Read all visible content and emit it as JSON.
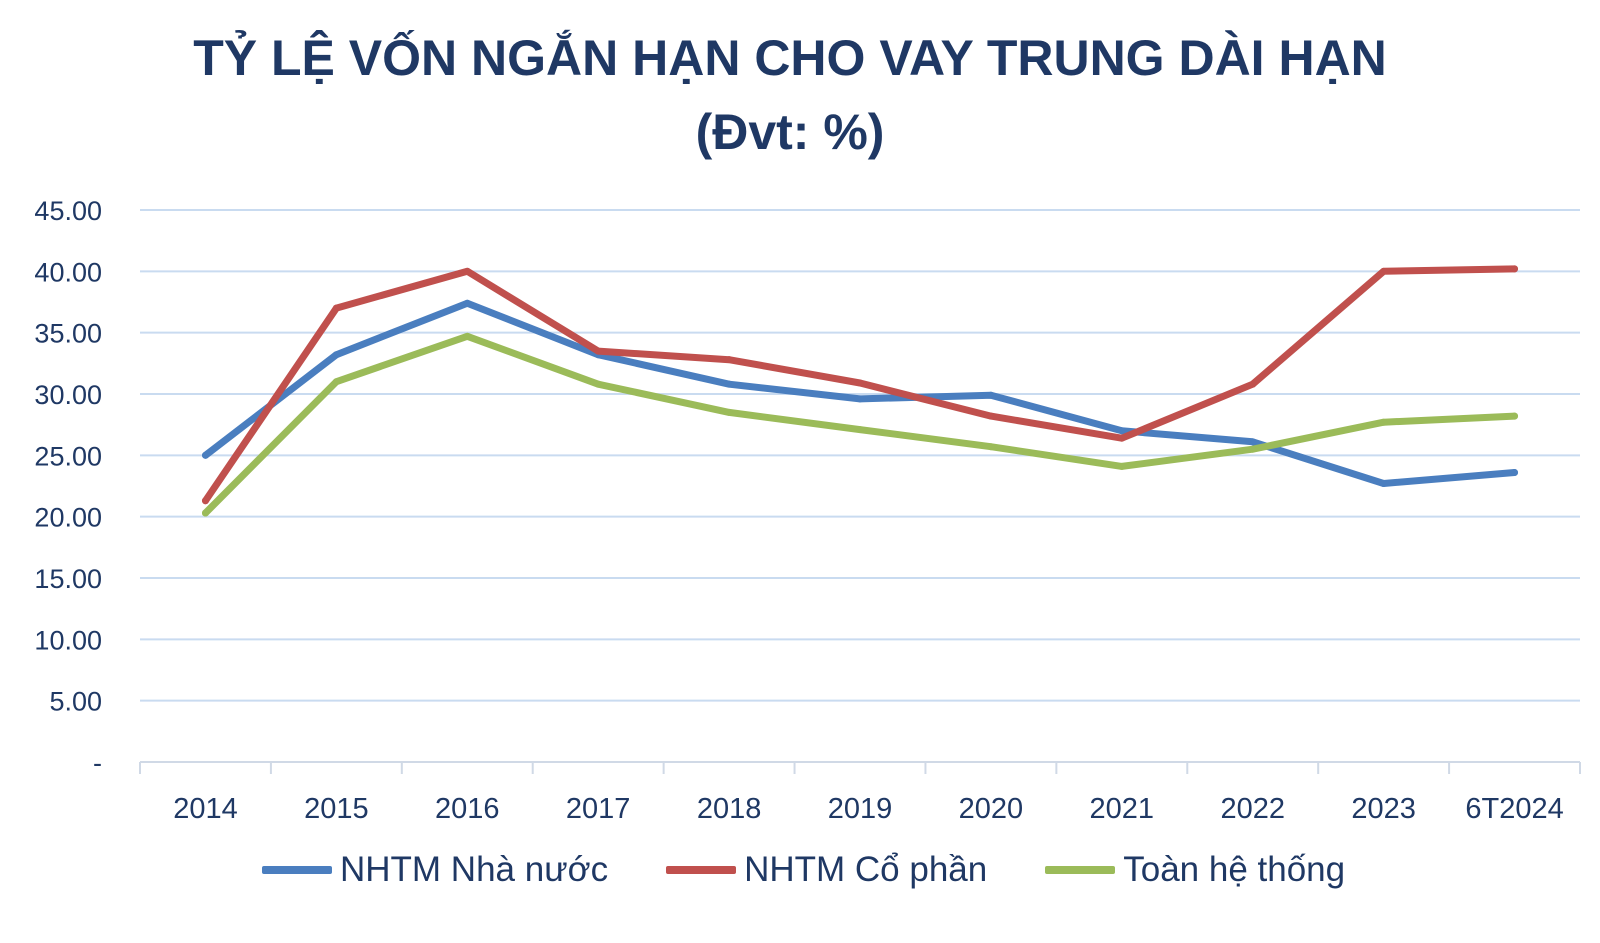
{
  "title": "TỶ LỆ VỐN NGẮN HẠN CHO VAY TRUNG DÀI HẠN",
  "subtitle": "(Đvt: %)",
  "colors": {
    "title": "#1f3864",
    "grid": "#c9dbf0",
    "axis": "#d0d9e6",
    "nhtm_nha_nuoc": "#4a7ebf",
    "nhtm_co_phan": "#c0504d",
    "toan_he_thong": "#9bbb59"
  },
  "chart_data": {
    "type": "line",
    "title": "TỶ LỆ VỐN NGẮN HẠN CHO VAY TRUNG DÀI HẠN",
    "subtitle": "(Đvt: %)",
    "categories": [
      "2014",
      "2015",
      "2016",
      "2017",
      "2018",
      "2019",
      "2020",
      "2021",
      "2022",
      "2023",
      "6T2024"
    ],
    "ylim": [
      0,
      45
    ],
    "yticks": [
      {
        "value": 0,
        "label": "-"
      },
      {
        "value": 5,
        "label": "5.00"
      },
      {
        "value": 10,
        "label": "10.00"
      },
      {
        "value": 15,
        "label": "15.00"
      },
      {
        "value": 20,
        "label": "20.00"
      },
      {
        "value": 25,
        "label": "25.00"
      },
      {
        "value": 30,
        "label": "30.00"
      },
      {
        "value": 35,
        "label": "35.00"
      },
      {
        "value": 40,
        "label": "40.00"
      },
      {
        "value": 45,
        "label": "45.00"
      }
    ],
    "grid": true,
    "legend_position": "bottom",
    "series": [
      {
        "name": "NHTM Nhà nước",
        "color": "#4a7ebf",
        "values": [
          25.0,
          33.2,
          37.4,
          33.2,
          30.8,
          29.6,
          29.9,
          27.0,
          26.1,
          22.7,
          23.6
        ]
      },
      {
        "name": "NHTM Cổ phần",
        "color": "#c0504d",
        "values": [
          21.3,
          37.0,
          40.0,
          33.5,
          32.8,
          30.9,
          28.2,
          26.4,
          30.8,
          40.0,
          40.2
        ]
      },
      {
        "name": "Toàn hệ thống",
        "color": "#9bbb59",
        "values": [
          20.3,
          31.0,
          34.7,
          30.8,
          28.5,
          27.1,
          25.7,
          24.1,
          25.5,
          27.7,
          28.2
        ]
      }
    ]
  }
}
